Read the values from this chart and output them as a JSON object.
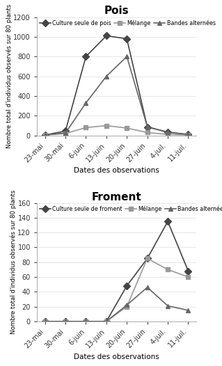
{
  "x_labels": [
    "23-mai",
    "30-mai",
    "6-juin",
    "13-juin",
    "20-juin",
    "27-juin",
    "4-juil.",
    "11-juil."
  ],
  "pois": {
    "title": "Pois",
    "ylabel": "Nombre total d'individus observés sur 80 plants",
    "xlabel": "Dates des observations",
    "ylim": [
      0,
      1200
    ],
    "yticks": [
      0,
      200,
      400,
      600,
      800,
      1000,
      1200
    ],
    "series": [
      {
        "label": "Culture seule de pois",
        "values": [
          5,
          45,
          800,
          1010,
          980,
          85,
          35,
          10
        ],
        "color": "#444444",
        "marker": "D",
        "linestyle": "-",
        "markersize": 5
      },
      {
        "label": "Mélange",
        "values": [
          5,
          20,
          80,
          100,
          75,
          30,
          10,
          5
        ],
        "color": "#999999",
        "marker": "s",
        "linestyle": "-",
        "markersize": 5
      },
      {
        "label": "Bandes alternées",
        "values": [
          5,
          25,
          330,
          600,
          800,
          90,
          30,
          10
        ],
        "color": "#666666",
        "marker": "^",
        "linestyle": "-",
        "markersize": 5
      }
    ]
  },
  "froment": {
    "title": "Froment",
    "ylabel": "Nombre total d'individus observés sur 80 plants",
    "xlabel": "Dates des observations",
    "ylim": [
      0,
      160
    ],
    "yticks": [
      0,
      20,
      40,
      60,
      80,
      100,
      120,
      140,
      160
    ],
    "series": [
      {
        "label": "Culture seule de froment",
        "values": [
          0,
          0,
          0,
          0,
          48,
          85,
          135,
          68
        ],
        "color": "#444444",
        "marker": "D",
        "linestyle": "-",
        "markersize": 5
      },
      {
        "label": "Mélange",
        "values": [
          0,
          0,
          0,
          0,
          20,
          85,
          70,
          60
        ],
        "color": "#999999",
        "marker": "s",
        "linestyle": "-",
        "markersize": 5
      },
      {
        "label": "Bandes alternées",
        "values": [
          0,
          0,
          0,
          0,
          22,
          46,
          21,
          15
        ],
        "color": "#666666",
        "marker": "^",
        "linestyle": "-",
        "markersize": 5
      }
    ]
  },
  "legend_fontsize": 5.8,
  "tick_fontsize": 7,
  "xlabel_fontsize": 7.5,
  "ylabel_fontsize": 6.2,
  "title_fontsize": 11
}
